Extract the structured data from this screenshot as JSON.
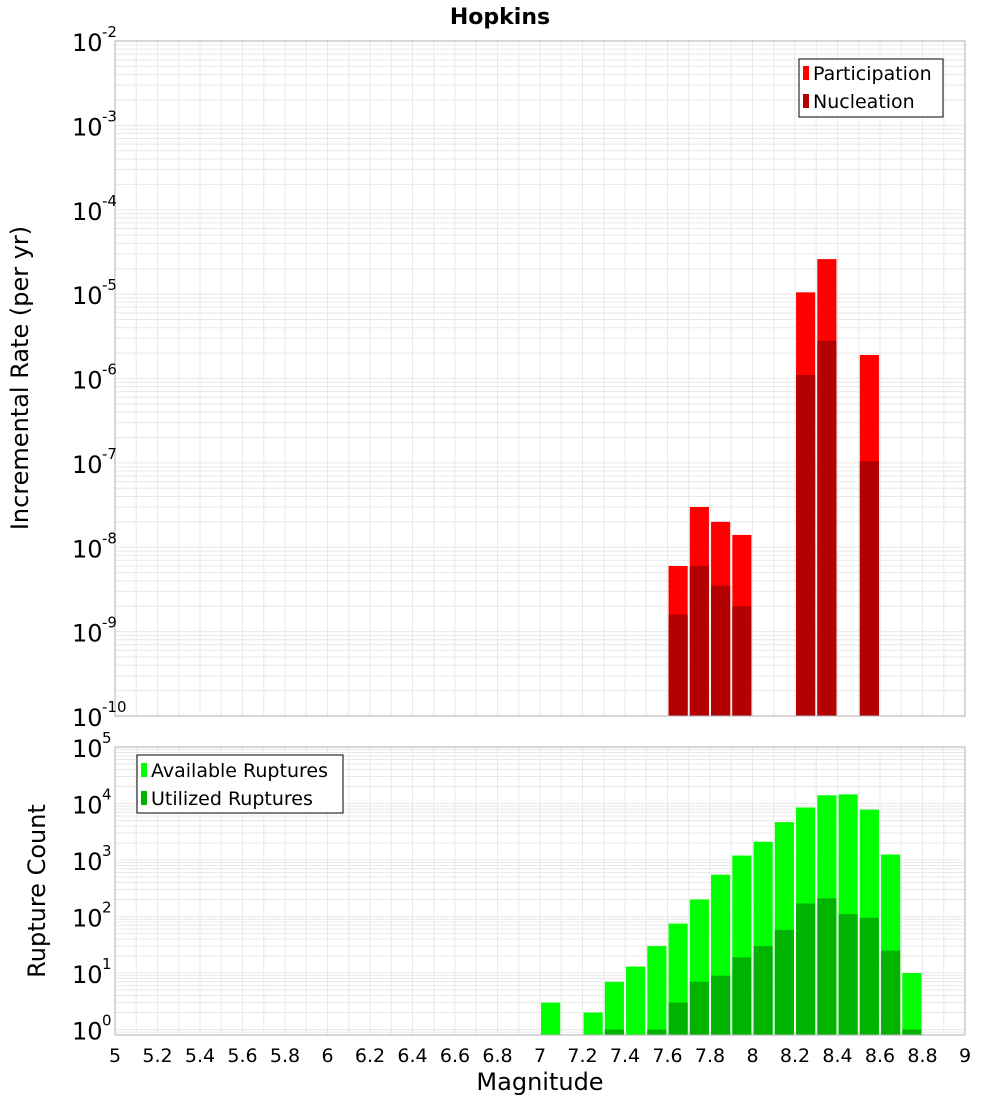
{
  "title": "Hopkins",
  "xlabel": "Magnitude",
  "x_ticks": [
    "5",
    "5.2",
    "5.4",
    "5.6",
    "5.8",
    "6",
    "6.2",
    "6.4",
    "6.6",
    "6.8",
    "7",
    "7.2",
    "7.4",
    "7.6",
    "7.8",
    "8",
    "8.2",
    "8.4",
    "8.6",
    "8.8",
    "9"
  ],
  "colors": {
    "participation": "#ff0000",
    "nucleation": "#b30000",
    "available": "#00ff00",
    "utilized": "#00b300",
    "grid": "#e8e8e8",
    "frame": "#b0b0b0"
  },
  "chart_data": [
    {
      "type": "bar",
      "id": "rate-panel",
      "title": "Hopkins",
      "xlabel": "Magnitude",
      "ylabel": "Incremental Rate (per yr)",
      "yscale": "log",
      "xlim": [
        5,
        9
      ],
      "ylim": [
        1e-10,
        0.01
      ],
      "grid": true,
      "bar_width": 0.09,
      "y_ticks": [
        {
          "base": "10",
          "exp": "-10"
        },
        {
          "base": "10",
          "exp": "-9"
        },
        {
          "base": "10",
          "exp": "-8"
        },
        {
          "base": "10",
          "exp": "-7"
        },
        {
          "base": "10",
          "exp": "-6"
        },
        {
          "base": "10",
          "exp": "-5"
        },
        {
          "base": "10",
          "exp": "-4"
        },
        {
          "base": "10",
          "exp": "-3"
        },
        {
          "base": "10",
          "exp": "-2"
        }
      ],
      "legend": {
        "position": "top-right",
        "entries": [
          "Participation",
          "Nucleation"
        ]
      },
      "series": [
        {
          "name": "Participation",
          "x": [
            7.65,
            7.75,
            7.85,
            7.95,
            8.25,
            8.35,
            8.55
          ],
          "values": [
            6e-09,
            3e-08,
            2e-08,
            1.4e-08,
            1.05e-05,
            2.6e-05,
            1.9e-06
          ]
        },
        {
          "name": "Nucleation",
          "x": [
            7.65,
            7.75,
            7.85,
            7.95,
            8.25,
            8.35,
            8.55
          ],
          "values": [
            1.6e-09,
            6e-09,
            3.5e-09,
            2e-09,
            1.1e-06,
            2.8e-06,
            1.05e-07
          ]
        }
      ]
    },
    {
      "type": "bar",
      "id": "count-panel",
      "xlabel": "Magnitude",
      "ylabel": "Rupture Count",
      "yscale": "log",
      "xlim": [
        5,
        9
      ],
      "ylim": [
        0.8,
        100000
      ],
      "grid": true,
      "bar_width": 0.09,
      "y_ticks": [
        {
          "base": "10",
          "exp": "0"
        },
        {
          "base": "10",
          "exp": "1"
        },
        {
          "base": "10",
          "exp": "2"
        },
        {
          "base": "10",
          "exp": "3"
        },
        {
          "base": "10",
          "exp": "4"
        },
        {
          "base": "10",
          "exp": "5"
        }
      ],
      "legend": {
        "position": "top-left",
        "entries": [
          "Available Ruptures",
          "Utilized Ruptures"
        ]
      },
      "series": [
        {
          "name": "Available Ruptures",
          "x": [
            7.05,
            7.25,
            7.35,
            7.45,
            7.55,
            7.65,
            7.75,
            7.85,
            7.95,
            8.05,
            8.15,
            8.25,
            8.35,
            8.45,
            8.55,
            8.65,
            8.75
          ],
          "values": [
            3,
            2,
            7,
            13,
            30,
            75,
            200,
            550,
            1200,
            2100,
            4700,
            8500,
            14000,
            14500,
            7800,
            1250,
            10
          ]
        },
        {
          "name": "Utilized Ruptures",
          "x": [
            7.35,
            7.55,
            7.65,
            7.75,
            7.85,
            7.95,
            8.05,
            8.15,
            8.25,
            8.35,
            8.45,
            8.55,
            8.65,
            8.75
          ],
          "values": [
            1,
            1,
            3,
            7,
            9,
            19,
            30,
            58,
            170,
            210,
            110,
            95,
            25,
            1
          ]
        }
      ]
    }
  ]
}
